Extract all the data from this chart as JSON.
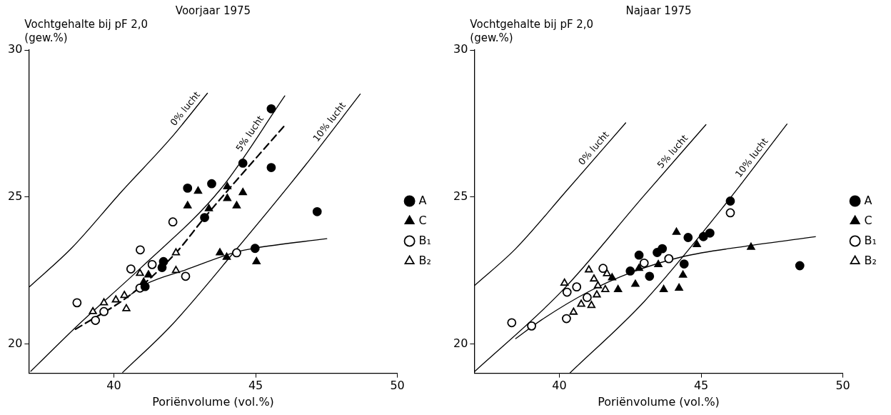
{
  "chart_data": [
    {
      "type": "scatter",
      "title": "Voorjaar 1975",
      "xlabel": "Poriënvolume (vol.%)",
      "ylabel": "Vochtgehalte bij pF 2,0\n(gew.%)",
      "xlim": [
        37,
        50
      ],
      "ylim": [
        19,
        30
      ],
      "xticks": [
        40,
        45,
        50
      ],
      "yticks": [
        20,
        25,
        30
      ],
      "legend": "right",
      "series": [
        {
          "name": "0% lucht",
          "type": "line",
          "marker": "none",
          "color": "#000000",
          "x": [
            37.03,
            38.51,
            40.26,
            42.01,
            43.3
          ],
          "values": [
            21.95,
            23.26,
            25.17,
            27.0,
            28.53
          ]
        },
        {
          "name": "5% lucht",
          "type": "line",
          "marker": "none",
          "color": "#000000",
          "x": [
            37.07,
            38.78,
            40.92,
            43.76,
            46.03
          ],
          "values": [
            19.07,
            20.68,
            22.56,
            25.26,
            28.44
          ]
        },
        {
          "name": "10% lucht",
          "type": "line",
          "marker": "none",
          "color": "#000000",
          "x": [
            40.31,
            42.0,
            44.28,
            46.73,
            48.69
          ],
          "values": [
            19.03,
            20.6,
            23.17,
            26.05,
            28.5
          ]
        },
        {
          "type": "line",
          "marker": "none",
          "line_style": "dashed",
          "color": "#000000",
          "x": [
            38.65,
            40.61,
            42.19,
            43.2,
            46.03
          ],
          "values": [
            20.5,
            21.69,
            23.1,
            24.3,
            27.44
          ]
        },
        {
          "type": "line",
          "marker": "none",
          "color": "#000000",
          "x": [
            40.61,
            41.14,
            42.53,
            44.33,
            44.98,
            47.51
          ],
          "values": [
            21.69,
            22.04,
            22.52,
            23.13,
            23.26,
            23.58
          ]
        },
        {
          "name": "A",
          "marker": "circle",
          "color": "#000000",
          "x": [
            45.55,
            44.55,
            45.55,
            43.45,
            42.6,
            43.2,
            44.98,
            41.75,
            41.7,
            41.1,
            47.17
          ],
          "values": [
            28.0,
            26.15,
            26.0,
            25.45,
            25.3,
            24.3,
            23.25,
            22.8,
            22.6,
            21.95,
            24.5
          ]
        },
        {
          "name": "C",
          "marker": "triangle",
          "color": "#000000",
          "x": [
            42.97,
            42.6,
            43.35,
            44.0,
            44.0,
            44.55,
            44.33,
            43.74,
            43.98,
            45.03,
            41.22,
            41.05
          ],
          "values": [
            25.2,
            24.7,
            24.6,
            25.35,
            24.95,
            25.15,
            24.7,
            23.1,
            22.95,
            22.8,
            22.35,
            22.1
          ]
        },
        {
          "name": "B₁",
          "marker": "circle",
          "color": "#ffffff",
          "x": [
            38.7,
            39.35,
            39.65,
            40.6,
            40.93,
            41.35,
            42.08,
            42.53,
            44.33,
            40.92
          ],
          "values": [
            21.4,
            20.8,
            21.1,
            22.55,
            23.2,
            22.7,
            24.15,
            22.3,
            23.1,
            21.9
          ]
        },
        {
          "name": "B₂",
          "marker": "triangle",
          "color": "#ffffff",
          "x": [
            39.26,
            39.65,
            40.07,
            40.37,
            40.44,
            42.19,
            42.19,
            40.92
          ],
          "values": [
            21.1,
            21.4,
            21.5,
            21.65,
            21.2,
            23.1,
            22.5,
            22.4
          ]
        }
      ]
    },
    {
      "type": "scatter",
      "title": "Najaar 1975",
      "xlabel": "Poriënvolume (vol.%)",
      "ylabel": "Vochtgehalte bij pF 2,0\n(gew.%)",
      "xlim": [
        37,
        50
      ],
      "ylim": [
        19,
        30
      ],
      "xticks": [
        40,
        45,
        50
      ],
      "yticks": [
        20,
        25,
        30
      ],
      "legend": "right",
      "series": [
        {
          "name": "0% lucht",
          "type": "line",
          "marker": "none",
          "color": "#000000",
          "x": [
            37.0,
            38.46,
            40.27,
            42.34
          ],
          "values": [
            21.98,
            23.24,
            25.23,
            27.52
          ]
        },
        {
          "name": "5% lucht",
          "type": "line",
          "marker": "none",
          "color": "#000000",
          "x": [
            37.0,
            40.09,
            42.99,
            45.17
          ],
          "values": [
            19.05,
            21.8,
            25.05,
            27.46
          ]
        },
        {
          "name": "10% lucht",
          "type": "line",
          "marker": "none",
          "color": "#000000",
          "x": [
            40.36,
            42.99,
            45.72,
            48.03
          ],
          "values": [
            19.0,
            21.44,
            24.59,
            27.48
          ]
        },
        {
          "type": "line",
          "marker": "none",
          "color": "#000000",
          "x": [
            38.46,
            39.36,
            41.0,
            42.54,
            44.36,
            46.62,
            49.03
          ],
          "values": [
            20.18,
            20.81,
            21.76,
            22.43,
            22.97,
            23.33,
            23.65
          ]
        },
        {
          "name": "A",
          "marker": "circle",
          "color": "#000000",
          "x": [
            46.03,
            44.54,
            45.08,
            45.31,
            42.81,
            43.45,
            43.63,
            42.5,
            43.18,
            44.4,
            48.48
          ],
          "values": [
            24.86,
            23.62,
            23.65,
            23.77,
            23.02,
            23.11,
            23.24,
            22.48,
            22.3,
            22.72,
            22.66
          ]
        },
        {
          "name": "C",
          "marker": "triangle",
          "color": "#000000",
          "x": [
            44.13,
            44.85,
            46.76,
            43.49,
            42.68,
            41.86,
            42.07,
            43.68,
            44.22,
            44.36,
            42.81
          ],
          "values": [
            23.8,
            23.38,
            23.29,
            22.7,
            22.03,
            22.25,
            21.85,
            21.85,
            21.9,
            22.34,
            22.57
          ]
        },
        {
          "name": "B₁",
          "marker": "circle",
          "color": "#ffffff",
          "x": [
            46.03,
            43.86,
            42.99,
            41.54,
            40.61,
            40.27,
            38.32,
            39.02,
            40.25,
            40.98
          ],
          "values": [
            24.46,
            22.9,
            22.75,
            22.57,
            21.94,
            21.76,
            20.72,
            20.61,
            20.86,
            21.58
          ]
        },
        {
          "name": "B₂",
          "marker": "triangle",
          "color": "#ffffff",
          "x": [
            40.18,
            41.04,
            41.22,
            41.36,
            41.32,
            41.62,
            41.68,
            40.77,
            41.13,
            40.5
          ],
          "values": [
            22.07,
            22.52,
            22.21,
            21.98,
            21.67,
            21.85,
            22.39,
            21.35,
            21.31,
            21.08
          ]
        }
      ]
    }
  ]
}
